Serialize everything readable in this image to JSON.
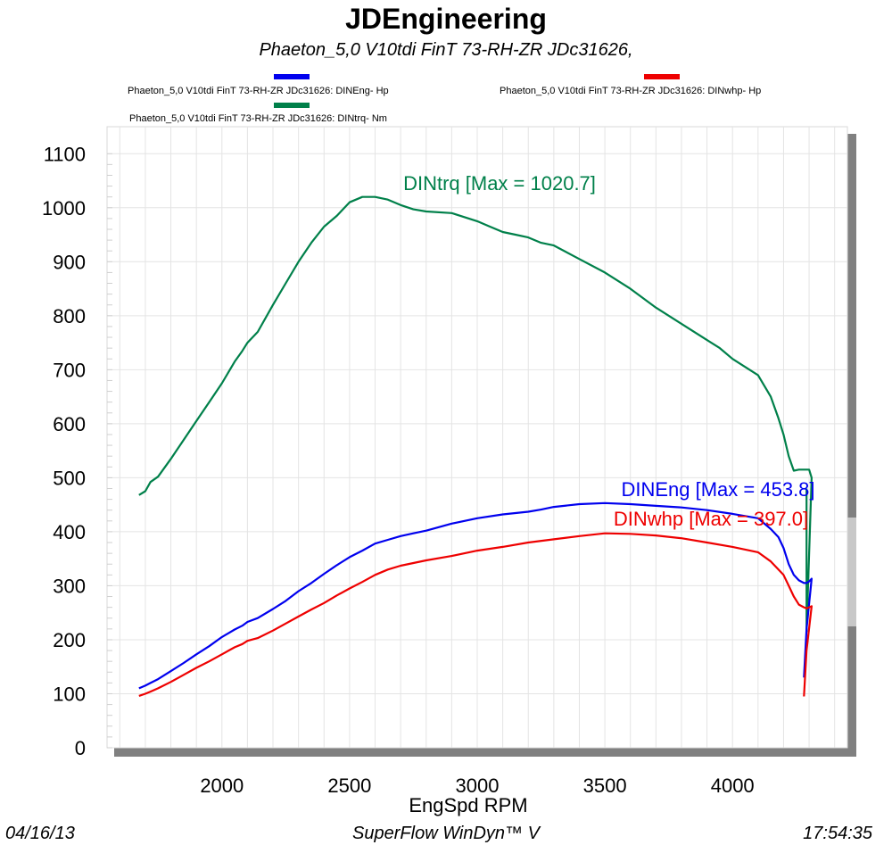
{
  "header": {
    "title": "JDEngineering",
    "subtitle": "Phaeton_5,0 V10tdi  FinT  73-RH-ZR   JDc31626,"
  },
  "legend": [
    {
      "text": "Phaeton_5,0 V10tdi  FinT  73-RH-ZR   JDc31626: DINEng- Hp",
      "color": "#0000ee"
    },
    {
      "text": "Phaeton_5,0 V10tdi  FinT  73-RH-ZR   JDc31626: DINwhp-  Hp",
      "color": "#ee0000"
    },
    {
      "text": "Phaeton_5,0 V10tdi  FinT  73-RH-ZR   JDc31626: DINtrq- Nm",
      "color": "#00804a"
    }
  ],
  "footer": {
    "date": "04/16/13",
    "software": "SuperFlow WinDyn™ V",
    "time": "17:54:35"
  },
  "chart_data": {
    "type": "line",
    "title": "JDEngineering",
    "subtitle": "Phaeton_5,0 V10tdi  FinT  73-RH-ZR   JDc31626,",
    "xlabel": "EngSpd  RPM",
    "ylabel": "",
    "xlim": [
      1550,
      4450
    ],
    "ylim": [
      0,
      1150
    ],
    "xticks": [
      2000,
      2500,
      3000,
      3500,
      4000
    ],
    "yticks": [
      0,
      100,
      200,
      300,
      400,
      500,
      600,
      700,
      800,
      900,
      1000,
      1100
    ],
    "grid": true,
    "legend_position": "top",
    "series": [
      {
        "name": "DINtrq",
        "color": "#00804a",
        "annotation": "DINtrq [Max = 1020.7]",
        "x": [
          1675,
          1700,
          1720,
          1750,
          1800,
          1850,
          1900,
          1950,
          2000,
          2050,
          2080,
          2100,
          2140,
          2200,
          2250,
          2300,
          2350,
          2400,
          2450,
          2500,
          2550,
          2600,
          2650,
          2700,
          2750,
          2800,
          2900,
          3000,
          3050,
          3100,
          3150,
          3200,
          3250,
          3300,
          3400,
          3500,
          3600,
          3700,
          3800,
          3900,
          3950,
          4000,
          4050,
          4100,
          4150,
          4180,
          4200,
          4220,
          4240,
          4260,
          4280,
          4300,
          4310,
          4290,
          4290
        ],
        "y": [
          468,
          475,
          492,
          502,
          535,
          570,
          605,
          640,
          675,
          715,
          735,
          750,
          770,
          820,
          860,
          900,
          935,
          965,
          985,
          1010,
          1020,
          1020,
          1015,
          1005,
          997,
          993,
          990,
          975,
          965,
          955,
          950,
          945,
          935,
          930,
          905,
          880,
          850,
          815,
          785,
          755,
          740,
          720,
          705,
          690,
          650,
          610,
          580,
          540,
          513,
          515,
          515,
          515,
          500,
          215,
          480
        ]
      },
      {
        "name": "DINEng",
        "color": "#0000ee",
        "annotation": "DINEng [Max = 453.8]",
        "x": [
          1675,
          1700,
          1720,
          1750,
          1800,
          1850,
          1900,
          1950,
          2000,
          2050,
          2080,
          2100,
          2140,
          2200,
          2250,
          2300,
          2350,
          2400,
          2450,
          2500,
          2550,
          2600,
          2650,
          2700,
          2750,
          2800,
          2900,
          3000,
          3100,
          3200,
          3250,
          3300,
          3400,
          3500,
          3600,
          3700,
          3800,
          3900,
          4000,
          4100,
          4150,
          4180,
          4200,
          4220,
          4240,
          4260,
          4280,
          4290,
          4300,
          4310,
          4290,
          4280
        ],
        "y": [
          110,
          115,
          120,
          127,
          142,
          157,
          173,
          188,
          205,
          219,
          226,
          233,
          240,
          257,
          272,
          290,
          305,
          322,
          338,
          353,
          365,
          378,
          385,
          392,
          397,
          402,
          415,
          425,
          432,
          437,
          441,
          446,
          451,
          453,
          451,
          448,
          445,
          440,
          433,
          425,
          405,
          390,
          370,
          340,
          320,
          310,
          305,
          305,
          308,
          313,
          220,
          130
        ]
      },
      {
        "name": "DINwhp",
        "color": "#ee0000",
        "annotation": "DINwhp [Max = 397.0]",
        "x": [
          1675,
          1700,
          1720,
          1750,
          1800,
          1850,
          1900,
          1950,
          2000,
          2050,
          2080,
          2100,
          2140,
          2200,
          2250,
          2300,
          2350,
          2400,
          2450,
          2500,
          2550,
          2600,
          2650,
          2700,
          2750,
          2800,
          2900,
          3000,
          3100,
          3200,
          3300,
          3400,
          3500,
          3600,
          3700,
          3800,
          3900,
          4000,
          4100,
          4150,
          4180,
          4200,
          4220,
          4240,
          4260,
          4280,
          4290,
          4300,
          4310,
          4290,
          4280
        ],
        "y": [
          96,
          100,
          104,
          110,
          122,
          135,
          148,
          160,
          173,
          186,
          192,
          198,
          203,
          217,
          230,
          243,
          256,
          268,
          282,
          295,
          307,
          320,
          330,
          337,
          342,
          347,
          355,
          365,
          372,
          380,
          386,
          392,
          397,
          396,
          393,
          388,
          380,
          372,
          362,
          345,
          330,
          320,
          300,
          280,
          265,
          260,
          258,
          260,
          262,
          180,
          95
        ]
      }
    ]
  }
}
